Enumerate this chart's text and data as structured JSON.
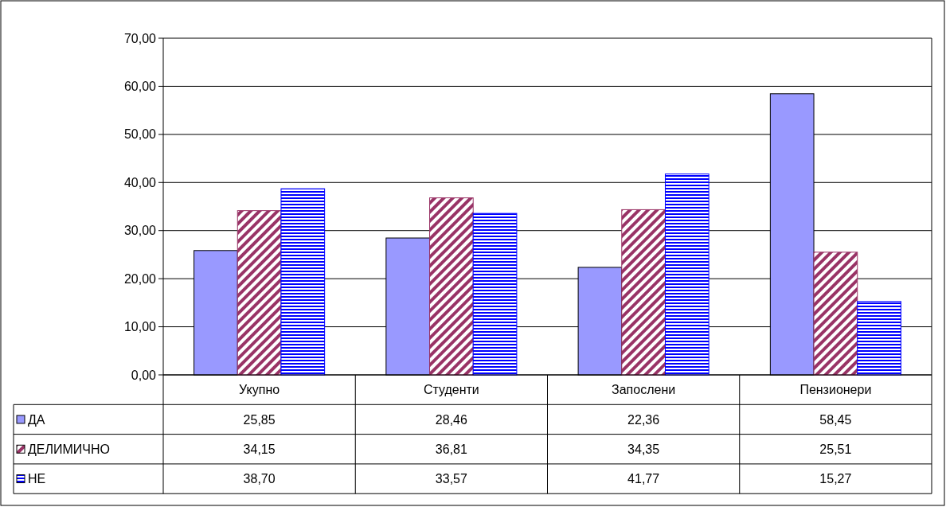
{
  "chart_data": {
    "type": "bar",
    "categories": [
      "Укупно",
      "Студенти",
      "Запослени",
      "Пензионери"
    ],
    "series": [
      {
        "name": "ДА",
        "color": "#9999ff",
        "values": [
          25.85,
          28.46,
          22.36,
          58.45
        ],
        "value_labels": [
          "25,85",
          "28,46",
          "22,36",
          "58,45"
        ]
      },
      {
        "name": "ДЕЛИМИЧНО",
        "color": "#993366",
        "values": [
          34.15,
          36.81,
          34.35,
          25.51
        ],
        "value_labels": [
          "34,15",
          "36,81",
          "34,35",
          "25,51"
        ]
      },
      {
        "name": "НЕ",
        "color": "#0000ff",
        "values": [
          38.7,
          33.57,
          41.77,
          15.27
        ],
        "value_labels": [
          "38,70",
          "33,57",
          "41,77",
          "15,27"
        ]
      }
    ],
    "ylim": [
      0,
      70
    ],
    "yticks": [
      {
        "value": 0,
        "label": "0,00"
      },
      {
        "value": 10,
        "label": "10,00"
      },
      {
        "value": 20,
        "label": "20,00"
      },
      {
        "value": 30,
        "label": "30,00"
      },
      {
        "value": 40,
        "label": "40,00"
      },
      {
        "value": 50,
        "label": "50,00"
      },
      {
        "value": 60,
        "label": "60,00"
      },
      {
        "value": 70,
        "label": "70,00"
      }
    ],
    "grid": "y",
    "legend": "left"
  }
}
